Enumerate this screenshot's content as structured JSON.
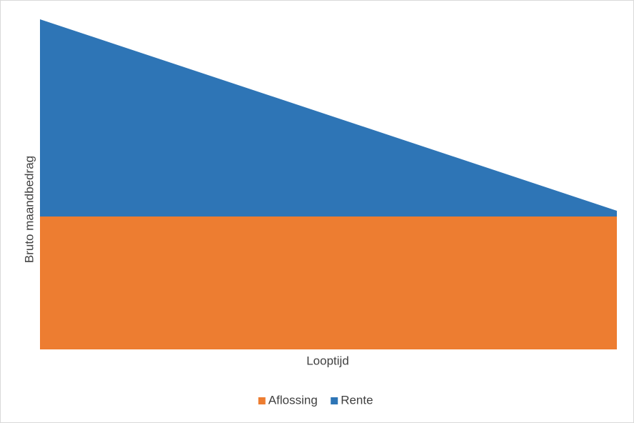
{
  "chart_data": {
    "type": "stacked-area",
    "x_label": "Looptijd",
    "y_label": "Bruto maandbedrag",
    "categories": [
      null,
      null,
      null,
      null,
      null,
      null,
      null,
      null,
      null
    ],
    "series": [
      {
        "name": "Aflossing",
        "color": "#ed7d31",
        "values": [
          186,
          186,
          186,
          186,
          186,
          186,
          186,
          186,
          186
        ]
      },
      {
        "name": "Rente",
        "color": "#2e75b6",
        "values": [
          276,
          242.5,
          209,
          175.5,
          142,
          108.5,
          75,
          41.5,
          8
        ]
      }
    ],
    "ylim": [
      0,
      470
    ],
    "legend": "bottom"
  }
}
